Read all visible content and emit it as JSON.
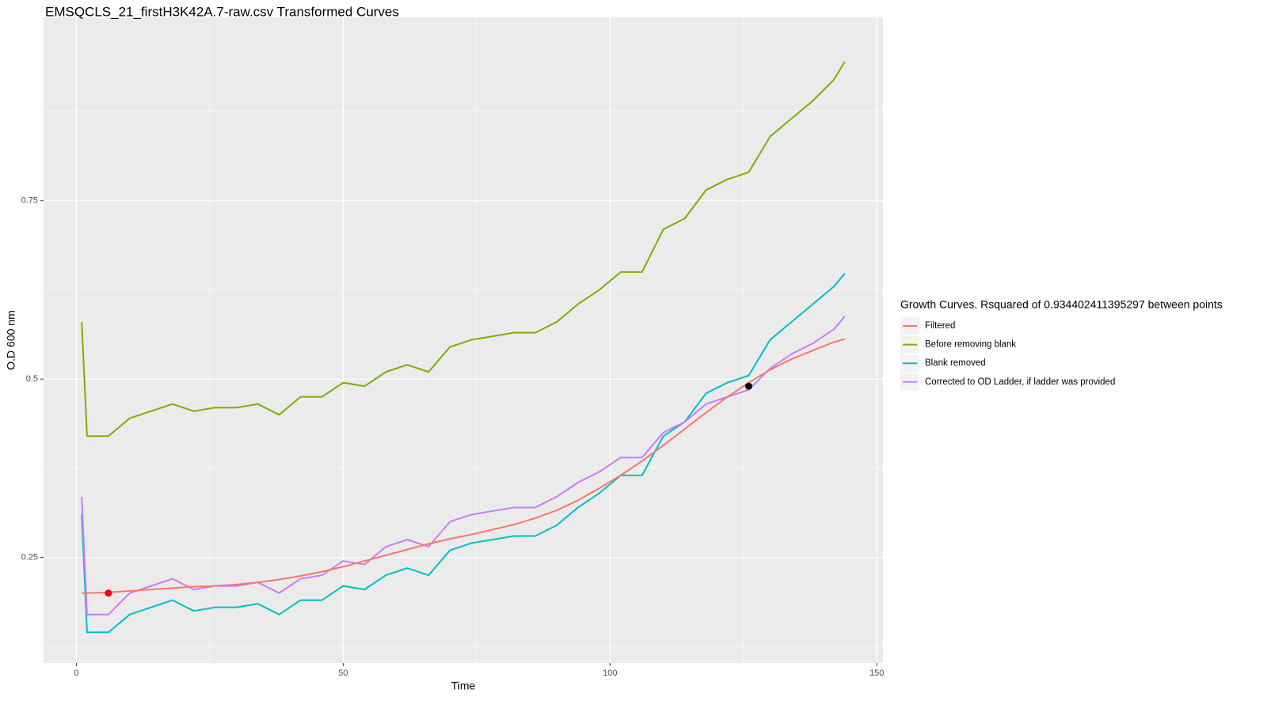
{
  "chart_data": {
    "type": "line",
    "title": "EMSQCLS_21_firstH3K42A.7-raw.csv Transformed Curves",
    "x_label": "Time",
    "y_label": "O.D 600 nm",
    "legend_title": "Growth Curves. Rsquared of 0.934402411395297 between points",
    "legend_position": "right",
    "grid": true,
    "xlim": [
      -6.15,
      151.15
    ],
    "ylim": [
      0.102,
      1.007
    ],
    "xticks": [
      0,
      50,
      100,
      150
    ],
    "yticks": [
      0.25,
      0.5,
      0.75
    ],
    "minor_xticks": [
      25,
      75,
      125
    ],
    "minor_yticks": [
      0.125,
      0.375,
      0.625,
      0.875
    ],
    "x": [
      1,
      2,
      6,
      10,
      14,
      18,
      22,
      26,
      30,
      34,
      38,
      42,
      46,
      50,
      54,
      58,
      62,
      66,
      70,
      74,
      78,
      82,
      86,
      90,
      94,
      98,
      102,
      106,
      110,
      114,
      118,
      122,
      126,
      130,
      134,
      138,
      142,
      144
    ],
    "series": [
      {
        "name": "Filtered",
        "color": "#F8766D",
        "values": [
          0.2,
          0.2,
          0.201,
          0.203,
          0.205,
          0.207,
          0.209,
          0.21,
          0.212,
          0.215,
          0.219,
          0.224,
          0.23,
          0.237,
          0.245,
          0.253,
          0.261,
          0.269,
          0.276,
          0.282,
          0.289,
          0.296,
          0.305,
          0.316,
          0.33,
          0.347,
          0.365,
          0.385,
          0.407,
          0.43,
          0.453,
          0.475,
          0.495,
          0.513,
          0.528,
          0.54,
          0.552,
          0.556
        ]
      },
      {
        "name": "Before removing blank",
        "color": "#7CAE00",
        "values": [
          0.58,
          0.42,
          0.42,
          0.445,
          0.455,
          0.465,
          0.455,
          0.46,
          0.46,
          0.465,
          0.45,
          0.475,
          0.475,
          0.495,
          0.49,
          0.51,
          0.52,
          0.51,
          0.545,
          0.555,
          0.56,
          0.565,
          0.565,
          0.58,
          0.605,
          0.625,
          0.65,
          0.65,
          0.71,
          0.725,
          0.765,
          0.78,
          0.79,
          0.84,
          0.865,
          0.89,
          0.92,
          0.945
        ]
      },
      {
        "name": "Blank removed",
        "color": "#00BFC4",
        "values": [
          0.31,
          0.145,
          0.145,
          0.17,
          0.18,
          0.19,
          0.175,
          0.18,
          0.18,
          0.185,
          0.17,
          0.19,
          0.19,
          0.21,
          0.205,
          0.225,
          0.235,
          0.225,
          0.26,
          0.27,
          0.275,
          0.28,
          0.28,
          0.295,
          0.32,
          0.34,
          0.365,
          0.365,
          0.42,
          0.44,
          0.48,
          0.495,
          0.505,
          0.555,
          0.58,
          0.605,
          0.63,
          0.648
        ]
      },
      {
        "name": "Corrected to OD Ladder, if ladder was provided",
        "color": "#C77CFF",
        "values": [
          0.335,
          0.17,
          0.17,
          0.2,
          0.21,
          0.22,
          0.205,
          0.21,
          0.21,
          0.215,
          0.2,
          0.22,
          0.225,
          0.245,
          0.24,
          0.265,
          0.275,
          0.265,
          0.3,
          0.31,
          0.315,
          0.32,
          0.32,
          0.335,
          0.355,
          0.37,
          0.39,
          0.39,
          0.425,
          0.44,
          0.465,
          0.475,
          0.485,
          0.515,
          0.535,
          0.55,
          0.57,
          0.588
        ]
      }
    ],
    "points": [
      {
        "x": 6,
        "y": 0.2,
        "color": "#FF0000"
      },
      {
        "x": 126,
        "y": 0.49,
        "color": "#000000"
      }
    ]
  }
}
